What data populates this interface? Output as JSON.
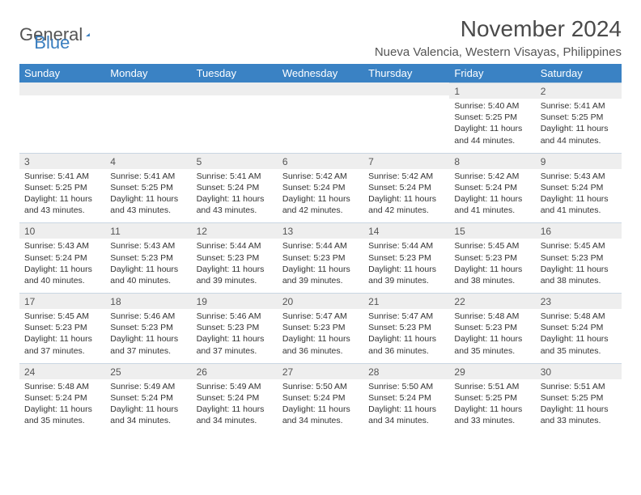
{
  "logo": {
    "word1": "General",
    "word2": "Blue"
  },
  "title": "November 2024",
  "subtitle": "Nueva Valencia, Western Visayas, Philippines",
  "colors": {
    "header_bg": "#3a82c4",
    "header_text": "#ffffff",
    "daynum_bg": "#eeeeee",
    "divider": "#c9d6e2",
    "logo_gray": "#555555",
    "logo_blue": "#3a7ebf"
  },
  "daynames": [
    "Sunday",
    "Monday",
    "Tuesday",
    "Wednesday",
    "Thursday",
    "Friday",
    "Saturday"
  ],
  "weeks": [
    [
      {
        "n": "",
        "t": ""
      },
      {
        "n": "",
        "t": ""
      },
      {
        "n": "",
        "t": ""
      },
      {
        "n": "",
        "t": ""
      },
      {
        "n": "",
        "t": ""
      },
      {
        "n": "1",
        "t": "Sunrise: 5:40 AM\nSunset: 5:25 PM\nDaylight: 11 hours and 44 minutes."
      },
      {
        "n": "2",
        "t": "Sunrise: 5:41 AM\nSunset: 5:25 PM\nDaylight: 11 hours and 44 minutes."
      }
    ],
    [
      {
        "n": "3",
        "t": "Sunrise: 5:41 AM\nSunset: 5:25 PM\nDaylight: 11 hours and 43 minutes."
      },
      {
        "n": "4",
        "t": "Sunrise: 5:41 AM\nSunset: 5:25 PM\nDaylight: 11 hours and 43 minutes."
      },
      {
        "n": "5",
        "t": "Sunrise: 5:41 AM\nSunset: 5:24 PM\nDaylight: 11 hours and 43 minutes."
      },
      {
        "n": "6",
        "t": "Sunrise: 5:42 AM\nSunset: 5:24 PM\nDaylight: 11 hours and 42 minutes."
      },
      {
        "n": "7",
        "t": "Sunrise: 5:42 AM\nSunset: 5:24 PM\nDaylight: 11 hours and 42 minutes."
      },
      {
        "n": "8",
        "t": "Sunrise: 5:42 AM\nSunset: 5:24 PM\nDaylight: 11 hours and 41 minutes."
      },
      {
        "n": "9",
        "t": "Sunrise: 5:43 AM\nSunset: 5:24 PM\nDaylight: 11 hours and 41 minutes."
      }
    ],
    [
      {
        "n": "10",
        "t": "Sunrise: 5:43 AM\nSunset: 5:24 PM\nDaylight: 11 hours and 40 minutes."
      },
      {
        "n": "11",
        "t": "Sunrise: 5:43 AM\nSunset: 5:23 PM\nDaylight: 11 hours and 40 minutes."
      },
      {
        "n": "12",
        "t": "Sunrise: 5:44 AM\nSunset: 5:23 PM\nDaylight: 11 hours and 39 minutes."
      },
      {
        "n": "13",
        "t": "Sunrise: 5:44 AM\nSunset: 5:23 PM\nDaylight: 11 hours and 39 minutes."
      },
      {
        "n": "14",
        "t": "Sunrise: 5:44 AM\nSunset: 5:23 PM\nDaylight: 11 hours and 39 minutes."
      },
      {
        "n": "15",
        "t": "Sunrise: 5:45 AM\nSunset: 5:23 PM\nDaylight: 11 hours and 38 minutes."
      },
      {
        "n": "16",
        "t": "Sunrise: 5:45 AM\nSunset: 5:23 PM\nDaylight: 11 hours and 38 minutes."
      }
    ],
    [
      {
        "n": "17",
        "t": "Sunrise: 5:45 AM\nSunset: 5:23 PM\nDaylight: 11 hours and 37 minutes."
      },
      {
        "n": "18",
        "t": "Sunrise: 5:46 AM\nSunset: 5:23 PM\nDaylight: 11 hours and 37 minutes."
      },
      {
        "n": "19",
        "t": "Sunrise: 5:46 AM\nSunset: 5:23 PM\nDaylight: 11 hours and 37 minutes."
      },
      {
        "n": "20",
        "t": "Sunrise: 5:47 AM\nSunset: 5:23 PM\nDaylight: 11 hours and 36 minutes."
      },
      {
        "n": "21",
        "t": "Sunrise: 5:47 AM\nSunset: 5:23 PM\nDaylight: 11 hours and 36 minutes."
      },
      {
        "n": "22",
        "t": "Sunrise: 5:48 AM\nSunset: 5:23 PM\nDaylight: 11 hours and 35 minutes."
      },
      {
        "n": "23",
        "t": "Sunrise: 5:48 AM\nSunset: 5:24 PM\nDaylight: 11 hours and 35 minutes."
      }
    ],
    [
      {
        "n": "24",
        "t": "Sunrise: 5:48 AM\nSunset: 5:24 PM\nDaylight: 11 hours and 35 minutes."
      },
      {
        "n": "25",
        "t": "Sunrise: 5:49 AM\nSunset: 5:24 PM\nDaylight: 11 hours and 34 minutes."
      },
      {
        "n": "26",
        "t": "Sunrise: 5:49 AM\nSunset: 5:24 PM\nDaylight: 11 hours and 34 minutes."
      },
      {
        "n": "27",
        "t": "Sunrise: 5:50 AM\nSunset: 5:24 PM\nDaylight: 11 hours and 34 minutes."
      },
      {
        "n": "28",
        "t": "Sunrise: 5:50 AM\nSunset: 5:24 PM\nDaylight: 11 hours and 34 minutes."
      },
      {
        "n": "29",
        "t": "Sunrise: 5:51 AM\nSunset: 5:25 PM\nDaylight: 11 hours and 33 minutes."
      },
      {
        "n": "30",
        "t": "Sunrise: 5:51 AM\nSunset: 5:25 PM\nDaylight: 11 hours and 33 minutes."
      }
    ]
  ]
}
